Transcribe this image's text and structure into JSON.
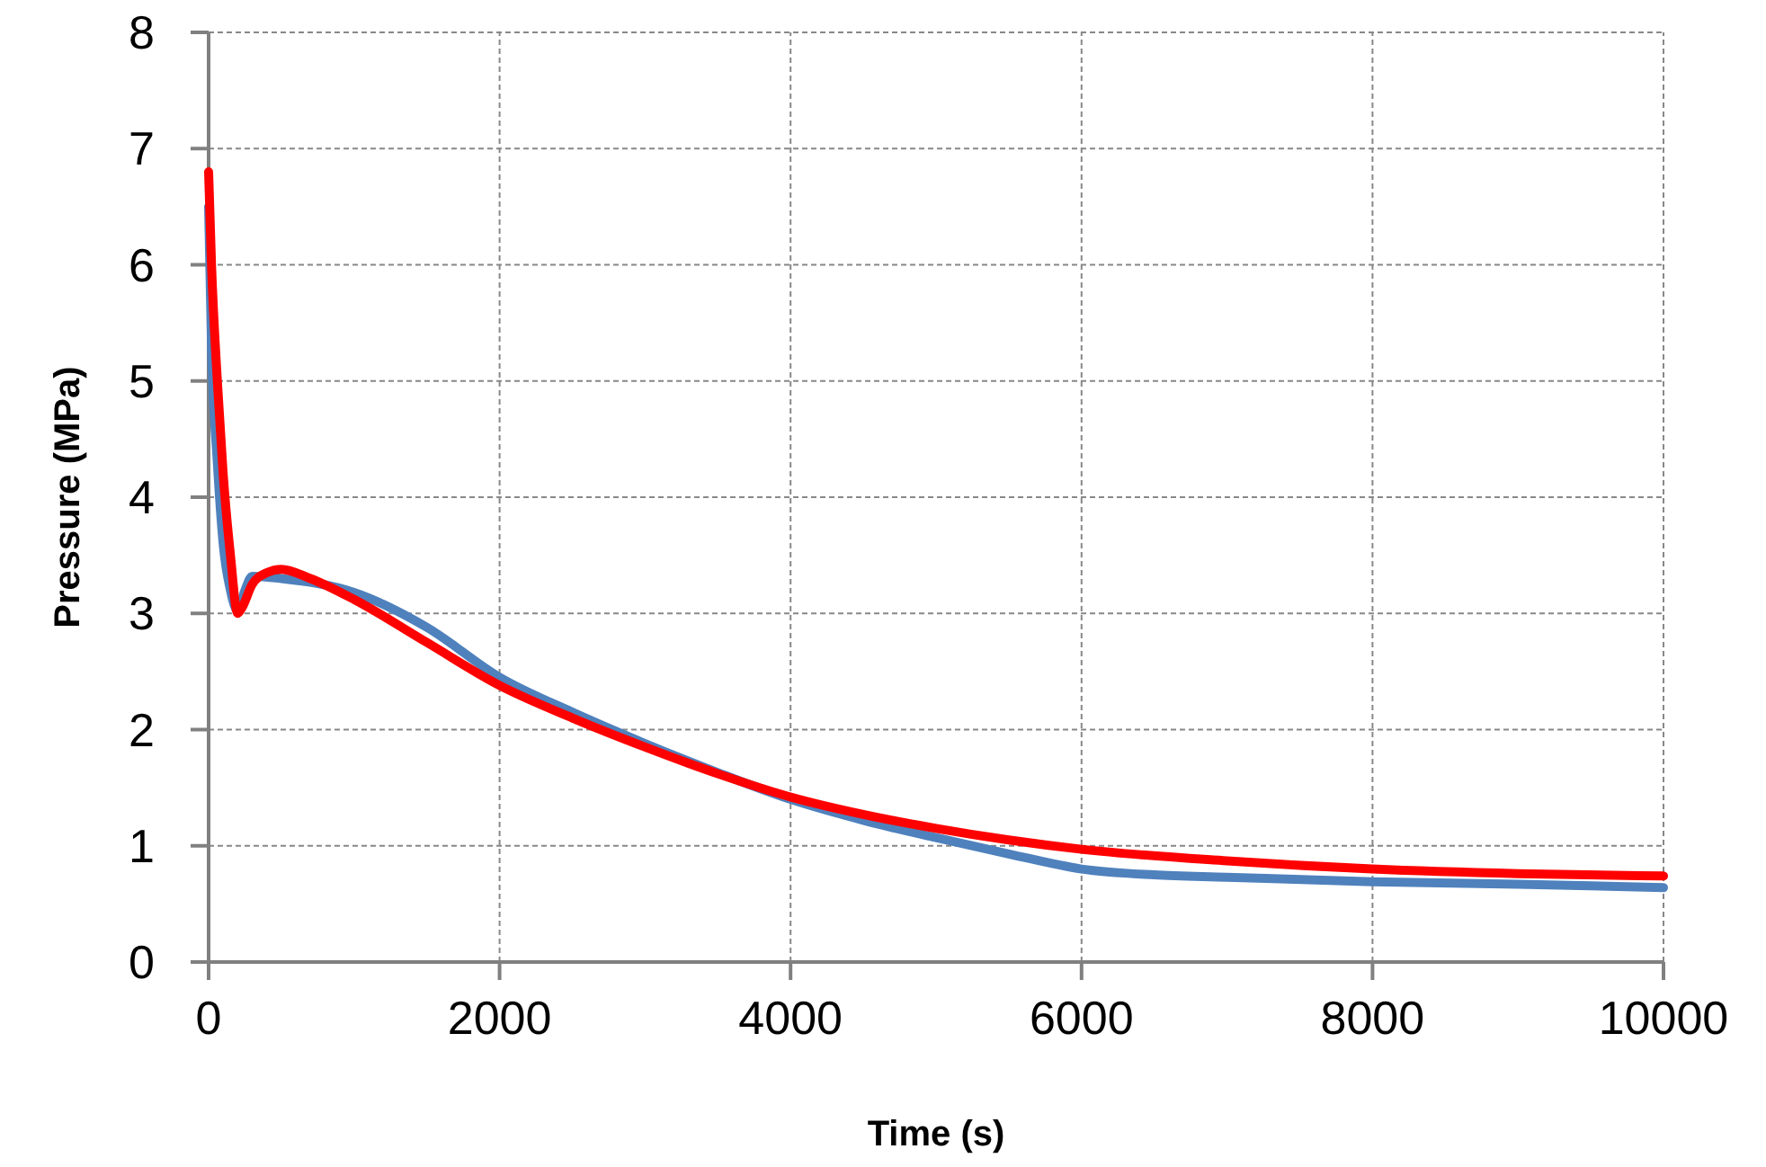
{
  "chart_data": {
    "type": "line",
    "xlabel": "Time (s)",
    "ylabel": "Pressure (MPa)",
    "xlim": [
      0,
      10000
    ],
    "ylim": [
      0,
      8
    ],
    "xticks": [
      0,
      2000,
      4000,
      6000,
      8000,
      10000
    ],
    "yticks": [
      0,
      1,
      2,
      3,
      4,
      5,
      6,
      7,
      8
    ],
    "grid": true,
    "marker": "none",
    "line_style": "solid",
    "series": [
      {
        "color": "#4f81bd",
        "x": [
          0,
          20,
          60,
          100,
          150,
          200,
          250,
          300,
          500,
          1000,
          1500,
          2000,
          2500,
          3000,
          3500,
          4000,
          4500,
          5000,
          5500,
          6000,
          6500,
          7000,
          8000,
          9000,
          10000
        ],
        "values": [
          6.5,
          5.3,
          4.3,
          3.6,
          3.2,
          3.02,
          3.2,
          3.32,
          3.3,
          3.18,
          2.88,
          2.45,
          2.15,
          1.88,
          1.63,
          1.4,
          1.22,
          1.07,
          0.93,
          0.8,
          0.75,
          0.73,
          0.69,
          0.67,
          0.64
        ]
      },
      {
        "color": "#ff0000",
        "x": [
          0,
          20,
          60,
          100,
          150,
          200,
          230,
          300,
          400,
          500,
          700,
          1000,
          1500,
          2000,
          2500,
          3000,
          3500,
          4000,
          4500,
          5000,
          5500,
          6000,
          7000,
          8000,
          9000,
          10000
        ],
        "values": [
          6.8,
          6.0,
          5.0,
          4.2,
          3.5,
          3.0,
          3.05,
          3.25,
          3.35,
          3.38,
          3.3,
          3.12,
          2.75,
          2.38,
          2.1,
          1.85,
          1.62,
          1.42,
          1.27,
          1.15,
          1.05,
          0.97,
          0.87,
          0.8,
          0.76,
          0.74
        ]
      }
    ]
  }
}
